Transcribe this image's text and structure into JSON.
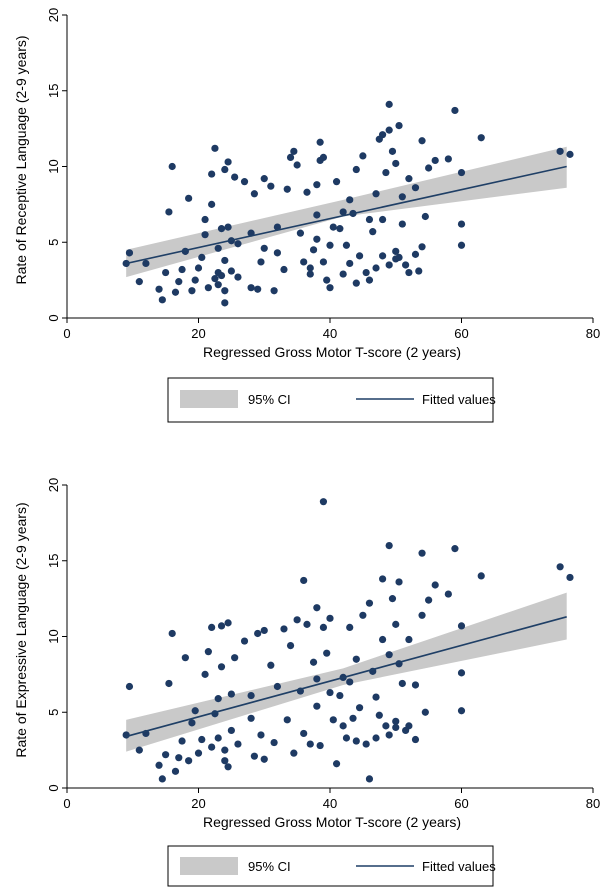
{
  "chart_data": [
    {
      "type": "scatter",
      "title": "",
      "xlabel": "Regressed Gross Motor T-score (2 years)",
      "ylabel": "Rate of Receptive Language (2-9 years)",
      "xlim": [
        0,
        80
      ],
      "ylim": [
        0,
        20
      ],
      "xticks": [
        "0",
        "20",
        "40",
        "60",
        "80"
      ],
      "yticks": [
        "0",
        "5",
        "10",
        "15",
        "20"
      ],
      "legend": {
        "placement": "bottom",
        "entries": [
          "95% CI",
          "Fitted values"
        ]
      },
      "colors": {
        "points": "#1e3a63",
        "fit": "#1f3f66",
        "ci": "#c9c9c9"
      },
      "fit": {
        "x": [
          9,
          76
        ],
        "y": [
          3.6,
          10.0
        ]
      },
      "ci": {
        "x": [
          9,
          42,
          76
        ],
        "upper": [
          4.5,
          7.8,
          11.3
        ],
        "lower": [
          2.7,
          6.7,
          8.6
        ]
      },
      "points": [
        [
          9,
          3.6
        ],
        [
          9.5,
          4.3
        ],
        [
          11,
          2.4
        ],
        [
          12,
          3.6
        ],
        [
          14,
          1.9
        ],
        [
          14.5,
          1.2
        ],
        [
          15,
          3.0
        ],
        [
          15.5,
          7.0
        ],
        [
          16,
          10.0
        ],
        [
          16.5,
          1.7
        ],
        [
          17,
          2.4
        ],
        [
          17.5,
          3.2
        ],
        [
          18,
          4.4
        ],
        [
          18.5,
          7.9
        ],
        [
          19,
          1.8
        ],
        [
          19.5,
          2.5
        ],
        [
          20,
          3.3
        ],
        [
          20.5,
          4.0
        ],
        [
          21,
          5.5
        ],
        [
          21,
          6.5
        ],
        [
          21.5,
          2.0
        ],
        [
          22,
          9.5
        ],
        [
          22,
          7.5
        ],
        [
          22.5,
          11.2
        ],
        [
          22.5,
          2.6
        ],
        [
          23,
          3.0
        ],
        [
          23,
          2.2
        ],
        [
          23,
          4.6
        ],
        [
          23.5,
          5.9
        ],
        [
          23.5,
          2.8
        ],
        [
          24,
          1.8
        ],
        [
          24,
          3.8
        ],
        [
          24,
          9.8
        ],
        [
          24.5,
          10.3
        ],
        [
          24.5,
          6.0
        ],
        [
          24,
          1.0
        ],
        [
          25,
          3.1
        ],
        [
          25,
          5.1
        ],
        [
          25.5,
          9.3
        ],
        [
          26,
          2.7
        ],
        [
          26,
          4.9
        ],
        [
          27,
          9.0
        ],
        [
          28,
          2.0
        ],
        [
          28,
          5.6
        ],
        [
          28.5,
          8.2
        ],
        [
          29,
          1.9
        ],
        [
          29.5,
          3.7
        ],
        [
          30,
          9.2
        ],
        [
          30,
          4.6
        ],
        [
          31,
          8.7
        ],
        [
          31.5,
          1.8
        ],
        [
          32,
          4.3
        ],
        [
          32,
          6.0
        ],
        [
          33,
          3.2
        ],
        [
          33.5,
          8.5
        ],
        [
          34,
          10.6
        ],
        [
          34.5,
          11.0
        ],
        [
          35,
          10.1
        ],
        [
          35.5,
          5.6
        ],
        [
          36,
          3.7
        ],
        [
          36.5,
          8.3
        ],
        [
          37,
          2.9
        ],
        [
          37,
          3.3
        ],
        [
          37.5,
          4.5
        ],
        [
          38,
          5.2
        ],
        [
          38,
          6.8
        ],
        [
          38,
          8.8
        ],
        [
          38.5,
          10.4
        ],
        [
          38.5,
          11.6
        ],
        [
          39,
          10.6
        ],
        [
          39,
          3.7
        ],
        [
          39.5,
          2.5
        ],
        [
          40,
          2.0
        ],
        [
          40,
          4.8
        ],
        [
          40.5,
          6.0
        ],
        [
          41,
          9.0
        ],
        [
          41.5,
          5.9
        ],
        [
          42,
          7.0
        ],
        [
          42,
          2.9
        ],
        [
          42.5,
          4.8
        ],
        [
          43,
          7.8
        ],
        [
          43,
          3.6
        ],
        [
          43.5,
          6.9
        ],
        [
          44,
          9.8
        ],
        [
          44,
          2.3
        ],
        [
          44.5,
          4.1
        ],
        [
          45,
          10.7
        ],
        [
          45.5,
          3.0
        ],
        [
          46,
          6.5
        ],
        [
          46,
          2.5
        ],
        [
          46.5,
          5.7
        ],
        [
          47,
          8.2
        ],
        [
          47,
          3.3
        ],
        [
          47.5,
          11.8
        ],
        [
          48,
          12.1
        ],
        [
          48,
          4.1
        ],
        [
          48,
          6.5
        ],
        [
          48.5,
          9.6
        ],
        [
          49,
          12.4
        ],
        [
          49,
          14.1
        ],
        [
          49,
          3.5
        ],
        [
          49.5,
          11.0
        ],
        [
          50,
          4.4
        ],
        [
          50,
          10.2
        ],
        [
          50,
          3.9
        ],
        [
          50.5,
          12.7
        ],
        [
          50.5,
          4.0
        ],
        [
          51,
          6.2
        ],
        [
          51,
          8.0
        ],
        [
          51.5,
          3.5
        ],
        [
          52,
          9.2
        ],
        [
          52,
          3.0
        ],
        [
          53,
          8.6
        ],
        [
          53,
          4.2
        ],
        [
          53.5,
          3.1
        ],
        [
          54,
          11.7
        ],
        [
          54,
          4.7
        ],
        [
          54.5,
          6.7
        ],
        [
          55,
          9.9
        ],
        [
          56,
          10.4
        ],
        [
          58,
          10.5
        ],
        [
          59,
          13.7
        ],
        [
          60,
          9.6
        ],
        [
          60,
          6.2
        ],
        [
          60,
          4.8
        ],
        [
          63,
          11.9
        ],
        [
          75,
          11.0
        ],
        [
          76.5,
          10.8
        ]
      ]
    },
    {
      "type": "scatter",
      "title": "",
      "xlabel": "Regressed Gross Motor T-score (2 years)",
      "ylabel": "Rate of Expressive Language (2-9 years)",
      "xlim": [
        0,
        80
      ],
      "ylim": [
        0,
        20
      ],
      "xticks": [
        "0",
        "20",
        "40",
        "60",
        "80"
      ],
      "yticks": [
        "0",
        "5",
        "10",
        "15",
        "20"
      ],
      "legend": {
        "placement": "bottom",
        "entries": [
          "95% CI",
          "Fitted values"
        ]
      },
      "colors": {
        "points": "#1e3a63",
        "fit": "#1f3f66",
        "ci": "#c9c9c9"
      },
      "fit": {
        "x": [
          9,
          76
        ],
        "y": [
          3.4,
          11.3
        ]
      },
      "ci": {
        "x": [
          9,
          42,
          76
        ],
        "upper": [
          4.5,
          7.9,
          12.9
        ],
        "lower": [
          2.4,
          6.8,
          9.8
        ]
      },
      "points": [
        [
          9,
          3.5
        ],
        [
          9.5,
          6.7
        ],
        [
          11,
          2.5
        ],
        [
          12,
          3.6
        ],
        [
          14,
          1.5
        ],
        [
          14.5,
          0.6
        ],
        [
          15,
          2.2
        ],
        [
          15.5,
          6.9
        ],
        [
          16,
          10.2
        ],
        [
          16.5,
          1.1
        ],
        [
          17,
          2.0
        ],
        [
          17.5,
          3.1
        ],
        [
          18,
          8.6
        ],
        [
          18.5,
          1.8
        ],
        [
          19,
          4.3
        ],
        [
          19.5,
          5.1
        ],
        [
          20,
          2.3
        ],
        [
          20.5,
          3.2
        ],
        [
          21,
          7.5
        ],
        [
          21.5,
          9.0
        ],
        [
          22,
          10.6
        ],
        [
          22,
          2.7
        ],
        [
          22.5,
          4.9
        ],
        [
          23,
          5.9
        ],
        [
          23,
          3.3
        ],
        [
          23.5,
          10.7
        ],
        [
          23.5,
          8.0
        ],
        [
          24,
          1.8
        ],
        [
          24,
          2.5
        ],
        [
          24.5,
          1.4
        ],
        [
          24.5,
          10.9
        ],
        [
          25,
          6.2
        ],
        [
          25,
          3.8
        ],
        [
          25.5,
          8.6
        ],
        [
          26,
          2.9
        ],
        [
          27,
          9.7
        ],
        [
          28,
          4.6
        ],
        [
          28,
          6.1
        ],
        [
          28.5,
          2.1
        ],
        [
          29,
          10.2
        ],
        [
          29.5,
          3.5
        ],
        [
          30,
          10.4
        ],
        [
          30,
          1.9
        ],
        [
          31,
          8.1
        ],
        [
          31.5,
          3.0
        ],
        [
          32,
          6.7
        ],
        [
          33,
          10.5
        ],
        [
          33.5,
          4.5
        ],
        [
          34,
          9.4
        ],
        [
          34.5,
          2.3
        ],
        [
          35,
          11.1
        ],
        [
          35.5,
          6.4
        ],
        [
          36,
          13.7
        ],
        [
          36,
          3.6
        ],
        [
          36.5,
          10.8
        ],
        [
          37,
          2.9
        ],
        [
          37.5,
          8.3
        ],
        [
          38,
          5.4
        ],
        [
          38,
          7.2
        ],
        [
          38,
          11.9
        ],
        [
          38.5,
          2.8
        ],
        [
          39,
          18.9
        ],
        [
          39,
          10.6
        ],
        [
          39.5,
          8.9
        ],
        [
          40,
          11.2
        ],
        [
          40,
          6.3
        ],
        [
          40.5,
          4.5
        ],
        [
          41,
          1.6
        ],
        [
          41.5,
          6.1
        ],
        [
          42,
          7.3
        ],
        [
          42,
          4.1
        ],
        [
          42.5,
          3.3
        ],
        [
          43,
          10.6
        ],
        [
          43,
          7.0
        ],
        [
          43.5,
          4.6
        ],
        [
          44,
          3.1
        ],
        [
          44,
          8.5
        ],
        [
          44.5,
          5.3
        ],
        [
          45,
          11.4
        ],
        [
          45.5,
          2.9
        ],
        [
          46,
          12.2
        ],
        [
          46,
          0.6
        ],
        [
          46.5,
          7.7
        ],
        [
          47,
          3.3
        ],
        [
          47,
          6.0
        ],
        [
          47.5,
          4.8
        ],
        [
          48,
          13.8
        ],
        [
          48,
          9.8
        ],
        [
          48.5,
          4.1
        ],
        [
          49,
          16.0
        ],
        [
          49,
          8.8
        ],
        [
          49,
          3.5
        ],
        [
          49.5,
          12.5
        ],
        [
          50,
          4.4
        ],
        [
          50,
          10.8
        ],
        [
          50,
          4.0
        ],
        [
          50.5,
          13.6
        ],
        [
          50.5,
          8.2
        ],
        [
          51,
          6.9
        ],
        [
          51.5,
          3.8
        ],
        [
          52,
          4.1
        ],
        [
          52,
          9.8
        ],
        [
          53,
          6.8
        ],
        [
          53,
          3.2
        ],
        [
          54,
          15.5
        ],
        [
          54,
          11.4
        ],
        [
          54.5,
          5.0
        ],
        [
          55,
          12.4
        ],
        [
          56,
          13.4
        ],
        [
          58,
          12.8
        ],
        [
          59,
          15.8
        ],
        [
          60,
          10.7
        ],
        [
          60,
          7.6
        ],
        [
          60,
          5.1
        ],
        [
          63,
          14.0
        ],
        [
          75,
          14.6
        ],
        [
          76.5,
          13.9
        ]
      ]
    }
  ]
}
